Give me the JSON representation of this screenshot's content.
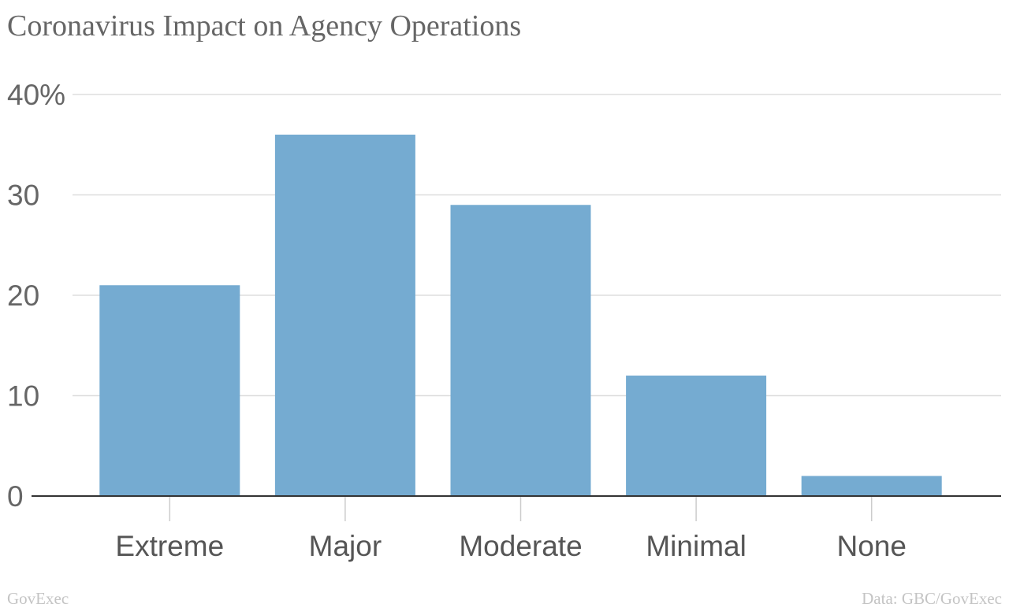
{
  "page": {
    "brand": "GovExec",
    "source": "Data: GBC/GovExec"
  },
  "colors": {
    "bar": "#75abd1",
    "grid": "#dddddd",
    "axis": "#333333",
    "tick_mark": "#cccccc"
  },
  "chart_data": {
    "type": "bar",
    "title": "Coronavirus Impact on Agency Operations",
    "xlabel": "",
    "ylabel": "",
    "categories": [
      "Extreme",
      "Major",
      "Moderate",
      "Minimal",
      "None"
    ],
    "values": [
      21,
      36,
      29,
      12,
      2
    ],
    "unit": "%",
    "ylim": [
      0,
      40
    ],
    "yticks": [
      0,
      10,
      20,
      30,
      40
    ],
    "ytick_labels": [
      "0",
      "10",
      "20",
      "30",
      "40%"
    ],
    "grid": true,
    "legend": "none"
  }
}
